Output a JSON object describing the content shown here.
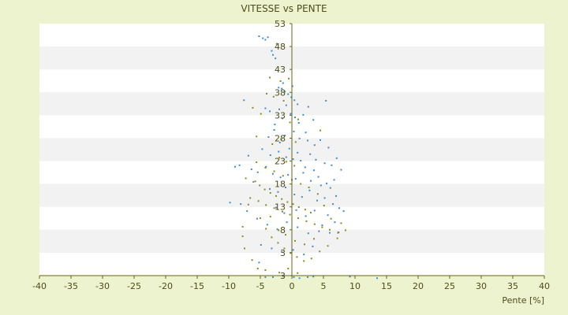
{
  "chart_data": {
    "type": "scatter",
    "title": "VITESSE vs PENTE",
    "xlabel": "Pente [%]",
    "ylabel": "",
    "xlim": [
      -40,
      40
    ],
    "ylim": [
      3,
      53
    ],
    "x_ticks": [
      -40,
      -35,
      -30,
      -25,
      -20,
      -15,
      -10,
      -5,
      0,
      5,
      10,
      15,
      20,
      25,
      30,
      35,
      40
    ],
    "y_tick_labels": [
      "53",
      "48",
      "43",
      "38",
      "33",
      "28",
      "23",
      "18",
      "13",
      "8",
      "3",
      "3"
    ],
    "grid": "horizontal bands",
    "legend": "none",
    "colors": {
      "background": "#eef3cf",
      "band_light": "#ffffff",
      "band_dark": "#f2f2f2",
      "axis": "#66661a",
      "text": "#4d4d1a",
      "series_blue": "#3a8fd8",
      "series_olive": "#8c8c1a"
    },
    "series": [
      {
        "color": "#3a8fd8",
        "points": [
          [
            -5.2,
            50.5
          ],
          [
            -4.6,
            50.1
          ],
          [
            -4.2,
            49.8
          ],
          [
            -3.8,
            50.3
          ],
          [
            -3.2,
            47.6
          ],
          [
            -3.0,
            46.8
          ],
          [
            -2.6,
            46.1
          ],
          [
            -2.1,
            40.3
          ],
          [
            -1.6,
            40.1
          ],
          [
            -1.1,
            39.5
          ],
          [
            -0.6,
            39.0
          ],
          [
            -0.1,
            38.4
          ],
          [
            0.4,
            37.8
          ],
          [
            0.9,
            37.0
          ],
          [
            -7.6,
            37.8
          ],
          [
            -4.2,
            36.2
          ],
          [
            -3.5,
            35.6
          ],
          [
            -2.0,
            36.0
          ],
          [
            -1.5,
            34.2
          ],
          [
            -0.2,
            35.1
          ],
          [
            0.5,
            34.4
          ],
          [
            1.8,
            34.9
          ],
          [
            2.6,
            36.5
          ],
          [
            3.4,
            33.9
          ],
          [
            5.4,
            37.7
          ],
          [
            -2.8,
            31.9
          ],
          [
            -1.1,
            30.8
          ],
          [
            0.3,
            31.6
          ],
          [
            1.2,
            30.2
          ],
          [
            2.5,
            29.8
          ],
          [
            3.6,
            28.9
          ],
          [
            4.5,
            29.9
          ],
          [
            5.8,
            28.4
          ],
          [
            -4.7,
            28.1
          ],
          [
            -3.4,
            26.9
          ],
          [
            -2.1,
            27.6
          ],
          [
            -0.9,
            26.5
          ],
          [
            0.2,
            26.1
          ],
          [
            1.4,
            25.8
          ],
          [
            2.9,
            27.1
          ],
          [
            3.8,
            26.0
          ],
          [
            5.2,
            25.3
          ],
          [
            6.3,
            24.9
          ],
          [
            7.1,
            26.3
          ],
          [
            7.8,
            24.0
          ],
          [
            -9.0,
            24.6
          ],
          [
            -8.3,
            24.9
          ],
          [
            -6.4,
            24.1
          ],
          [
            -5.4,
            23.5
          ],
          [
            -4.1,
            24.6
          ],
          [
            -3.0,
            23.2
          ],
          [
            -1.8,
            22.5
          ],
          [
            -0.6,
            23.0
          ],
          [
            0.6,
            22.2
          ],
          [
            1.8,
            23.4
          ],
          [
            3.0,
            21.8
          ],
          [
            4.2,
            22.6
          ],
          [
            5.5,
            21.3
          ],
          [
            6.7,
            22.0
          ],
          [
            -3.5,
            20.2
          ],
          [
            -2.2,
            19.6
          ],
          [
            -1.0,
            20.5
          ],
          [
            0.4,
            19.1
          ],
          [
            1.6,
            18.6
          ],
          [
            2.8,
            19.9
          ],
          [
            4.0,
            17.9
          ],
          [
            5.2,
            18.4
          ],
          [
            6.5,
            17.2
          ],
          [
            7.5,
            16.4
          ],
          [
            8.2,
            15.8
          ],
          [
            -9.8,
            17.5
          ],
          [
            -7.1,
            15.8
          ],
          [
            -5.5,
            14.3
          ],
          [
            -3.9,
            13.1
          ],
          [
            -2.3,
            12.2
          ],
          [
            -0.8,
            13.6
          ],
          [
            0.9,
            12.6
          ],
          [
            2.6,
            11.4
          ],
          [
            4.3,
            11.8
          ],
          [
            6.0,
            11.5
          ],
          [
            7.4,
            11.6
          ],
          [
            -4.9,
            9.1
          ],
          [
            -3.2,
            8.4
          ],
          [
            -1.6,
            7.7
          ],
          [
            0.2,
            8.1
          ],
          [
            1.9,
            7.2
          ],
          [
            3.3,
            8.8
          ],
          [
            -5.2,
            5.6
          ],
          [
            -4.2,
            2.7
          ],
          [
            -3.0,
            2.7
          ],
          [
            -1.4,
            2.9
          ],
          [
            0.3,
            2.7
          ],
          [
            1.2,
            2.5
          ],
          [
            2.5,
            2.7
          ],
          [
            3.4,
            2.8
          ],
          [
            9.2,
            2.8
          ],
          [
            13.5,
            2.5
          ],
          [
            -8.1,
            17.2
          ],
          [
            -2.7,
            33.0
          ],
          [
            -1.9,
            29.4
          ],
          [
            -0.4,
            28.2
          ],
          [
            0.9,
            27.4
          ],
          [
            2.1,
            24.5
          ],
          [
            3.5,
            23.9
          ],
          [
            4.6,
            20.9
          ],
          [
            -1.4,
            41.2
          ],
          [
            0.1,
            40.6
          ],
          [
            -0.9,
            36.8
          ],
          [
            1.1,
            33.3
          ],
          [
            -3.7,
            30.5
          ],
          [
            2.2,
            31.4
          ],
          [
            -5.8,
            21.7
          ],
          [
            -6.9,
            26.8
          ],
          [
            6.1,
            20.4
          ],
          [
            7.0,
            18.8
          ],
          [
            5.7,
            15.0
          ],
          [
            6.8,
            13.6
          ],
          [
            4.8,
            13.0
          ],
          [
            -2.5,
            16.5
          ],
          [
            -1.2,
            15.4
          ],
          [
            0.7,
            16.0
          ],
          [
            2.2,
            14.8
          ],
          [
            3.6,
            15.9
          ]
        ]
      },
      {
        "color": "#8c8c1a",
        "points": [
          [
            -2.4,
            49.0
          ],
          [
            -3.5,
            42.3
          ],
          [
            -1.8,
            41.6
          ],
          [
            -0.5,
            42.1
          ],
          [
            -4.0,
            39.1
          ],
          [
            -2.9,
            38.5
          ],
          [
            -1.3,
            37.7
          ],
          [
            -6.2,
            36.3
          ],
          [
            -4.9,
            35.1
          ],
          [
            -0.3,
            33.4
          ],
          [
            1.0,
            34.0
          ],
          [
            -5.6,
            30.6
          ],
          [
            -3.1,
            29.1
          ],
          [
            -1.7,
            30.1
          ],
          [
            0.6,
            29.5
          ],
          [
            4.5,
            31.8
          ],
          [
            -7.3,
            22.3
          ],
          [
            -6.1,
            21.6
          ],
          [
            -5.1,
            20.9
          ],
          [
            -4.3,
            20.1
          ],
          [
            -3.4,
            19.4
          ],
          [
            -2.5,
            18.8
          ],
          [
            -1.6,
            18.2
          ],
          [
            -0.7,
            17.6
          ],
          [
            0.2,
            17.2
          ],
          [
            1.1,
            16.6
          ],
          [
            2.1,
            16.1
          ],
          [
            3.0,
            15.5
          ],
          [
            -6.6,
            18.4
          ],
          [
            -5.3,
            17.8
          ],
          [
            -4.1,
            17.0
          ],
          [
            -2.8,
            16.4
          ],
          [
            -1.5,
            15.7
          ],
          [
            -0.3,
            15.1
          ],
          [
            1.0,
            14.4
          ],
          [
            2.3,
            13.8
          ],
          [
            3.6,
            13.2
          ],
          [
            4.8,
            12.6
          ],
          [
            6.0,
            12.1
          ],
          [
            7.3,
            11.5
          ],
          [
            8.5,
            12.0
          ],
          [
            -6.9,
            17.1
          ],
          [
            -5.0,
            14.4
          ],
          [
            -4.1,
            12.3
          ],
          [
            -3.2,
            10.6
          ],
          [
            -2.2,
            9.5
          ],
          [
            -1.2,
            8.4
          ],
          [
            -0.2,
            7.5
          ],
          [
            0.8,
            6.7
          ],
          [
            1.9,
            5.9
          ],
          [
            3.1,
            6.4
          ],
          [
            4.4,
            7.8
          ],
          [
            5.7,
            8.9
          ],
          [
            7.2,
            10.4
          ],
          [
            -7.8,
            12.7
          ],
          [
            -7.8,
            10.8
          ],
          [
            -7.5,
            8.4
          ],
          [
            -6.3,
            6.1
          ],
          [
            -5.4,
            4.4
          ],
          [
            -4.2,
            4.1
          ],
          [
            -2.0,
            3.6
          ],
          [
            -0.6,
            4.4
          ],
          [
            0.9,
            3.5
          ],
          [
            -2.1,
            12.0
          ],
          [
            -3.4,
            14.7
          ],
          [
            -1.0,
            11.1
          ],
          [
            0.5,
            9.9
          ],
          [
            2.0,
            9.2
          ],
          [
            3.5,
            10.3
          ],
          [
            6.2,
            14.3
          ],
          [
            7.8,
            13.4
          ],
          [
            5.1,
            16.9
          ],
          [
            4.1,
            19.2
          ],
          [
            2.7,
            20.5
          ],
          [
            1.4,
            21.2
          ],
          [
            0.0,
            22.0
          ],
          [
            -1.4,
            22.8
          ],
          [
            -2.8,
            23.7
          ],
          [
            -4.2,
            24.4
          ],
          [
            -5.6,
            25.5
          ],
          [
            -2.0,
            26.4
          ],
          [
            -0.9,
            25.6
          ],
          [
            0.4,
            24.8
          ]
        ]
      }
    ]
  }
}
